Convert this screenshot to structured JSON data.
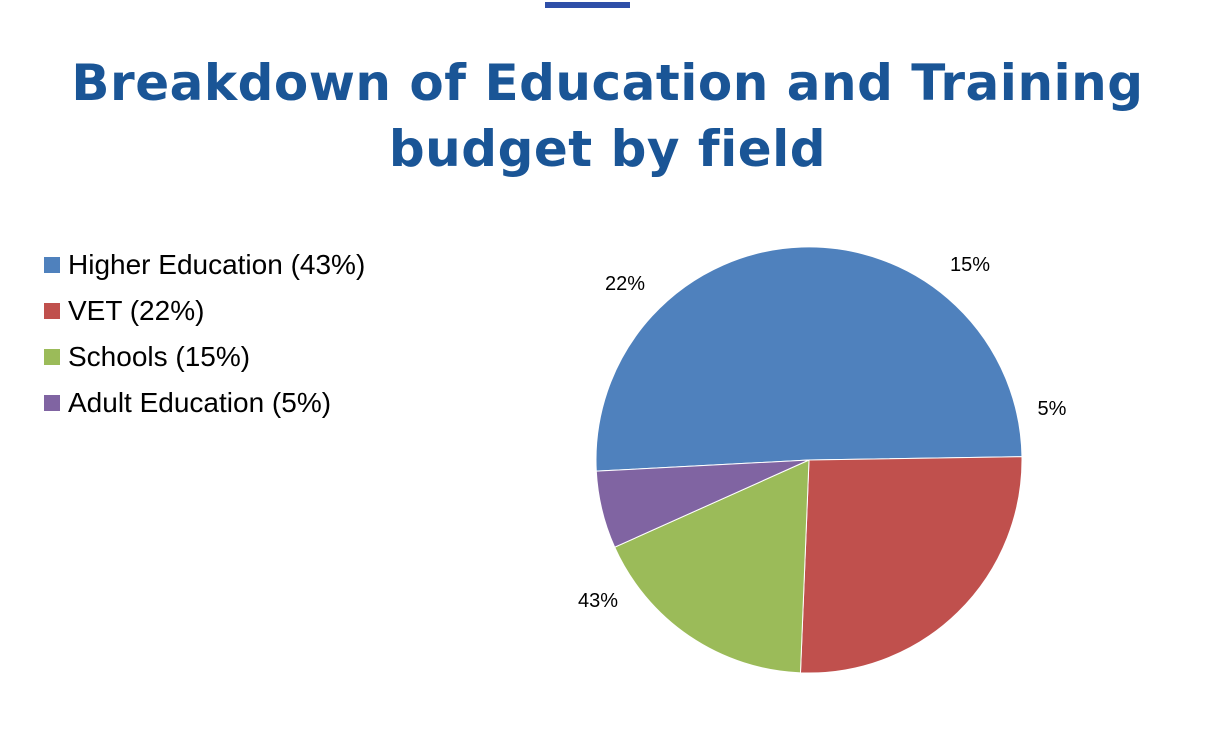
{
  "title_line1": "Breakdown of Education and Training",
  "title_line2": "budget by field",
  "colors": {
    "title": "#1a5596",
    "accent_bar": "#2f4fa8"
  },
  "chart_data": {
    "type": "pie",
    "title": "Breakdown of Education and Training budget by field",
    "legend_position": "left",
    "slices": [
      {
        "name": "Higher Education",
        "legend_label": "Higher Education (43%)",
        "value": 43,
        "data_label": "43%",
        "color": "#4f81bd"
      },
      {
        "name": "VET",
        "legend_label": "VET (22%)",
        "value": 22,
        "data_label": "22%",
        "color": "#c0504d"
      },
      {
        "name": "Schools",
        "legend_label": "Schools (15%)",
        "value": 15,
        "data_label": "15%",
        "color": "#9bbb59"
      },
      {
        "name": "Adult Education",
        "legend_label": "Adult Education (5%)",
        "value": 5,
        "data_label": "5%",
        "color": "#8064a2"
      }
    ]
  }
}
